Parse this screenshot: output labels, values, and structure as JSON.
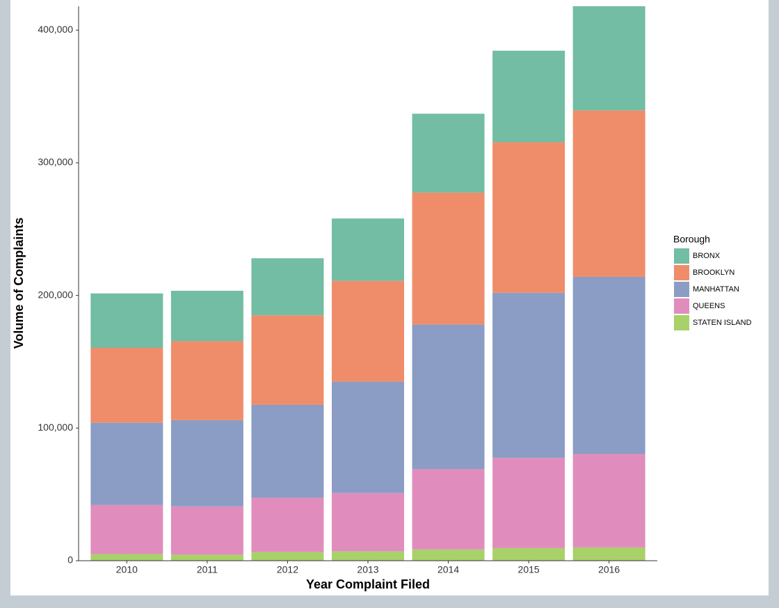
{
  "chart_data": {
    "type": "stacked_bar",
    "x_label": "Year Complaint Filed",
    "y_label": "Volume of Complaints",
    "legend_title": "Borough",
    "legend_position": "right",
    "categories": [
      "2010",
      "2011",
      "2012",
      "2013",
      "2014",
      "2015",
      "2016"
    ],
    "series": [
      {
        "name": "BRONX",
        "color": "#72bda3",
        "values": [
          41000,
          38000,
          43000,
          47000,
          59500,
          69000,
          78500
        ]
      },
      {
        "name": "BROOKLYN",
        "color": "#ef8d6b",
        "values": [
          56500,
          59500,
          67500,
          76000,
          99500,
          113500,
          125500
        ]
      },
      {
        "name": "MANHATTAN",
        "color": "#8b9dc4",
        "values": [
          62000,
          65000,
          70000,
          84000,
          109000,
          124500,
          133500
        ]
      },
      {
        "name": "QUEENS",
        "color": "#e08dbd",
        "values": [
          37000,
          36500,
          41000,
          44000,
          60500,
          68000,
          70500
        ]
      },
      {
        "name": "STATEN ISLAND",
        "color": "#a8d169",
        "values": [
          5000,
          4500,
          6500,
          7000,
          8500,
          9500,
          10000
        ]
      }
    ],
    "ylim": [
      0,
      418000
    ],
    "yticks": [
      0,
      {
        "value": 100000,
        "label": "100,000"
      },
      {
        "value": 200000,
        "label": "200,000"
      },
      {
        "value": 300000,
        "label": "300,000"
      },
      {
        "value": 400000,
        "label": "400,000"
      }
    ]
  }
}
